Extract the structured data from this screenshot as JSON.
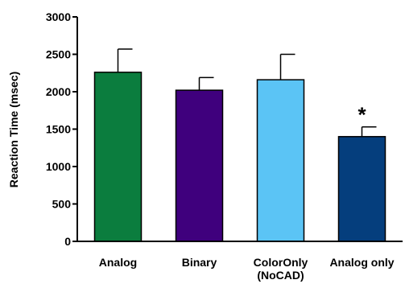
{
  "chart_data": {
    "type": "bar",
    "categories": [
      "Analog",
      "Binary",
      "ColorOnly\n(NoCAD)",
      "Analog only"
    ],
    "values": [
      2260,
      2020,
      2160,
      1400
    ],
    "errors": [
      310,
      170,
      340,
      130
    ],
    "colors": [
      "#0b7d3e",
      "#3f007d",
      "#5bc4f5",
      "#053e7d"
    ],
    "annotations": [
      {
        "category_index": 3,
        "text": "*"
      }
    ],
    "ylabel": "Reaction Time (msec)",
    "ylim": [
      0,
      3000
    ],
    "yticks": [
      0,
      500,
      1000,
      1500,
      2000,
      2500,
      3000
    ],
    "grid": false,
    "legend": "none"
  }
}
